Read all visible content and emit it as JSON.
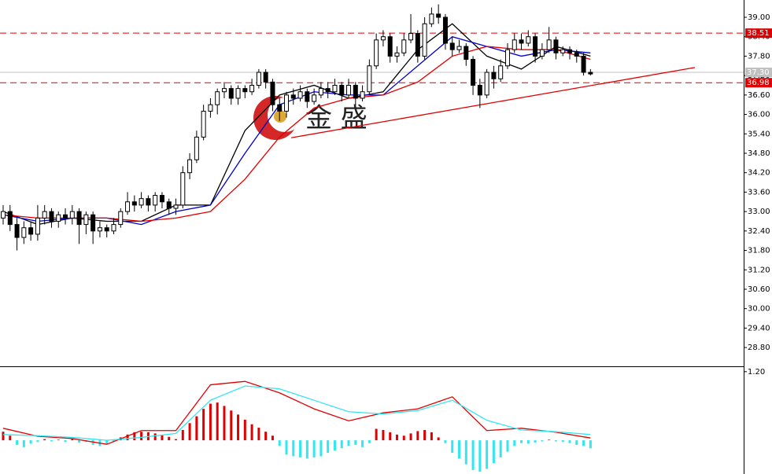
{
  "chart_data": [
    {
      "type": "candlestick",
      "xlim": [
        -0.456,
        107.17
      ],
      "ylim": [
        28.22,
        39.534
      ],
      "yticks": [
        {
          "value": 39,
          "label": "39.00"
        },
        {
          "value": 38.4,
          "label": "38.40"
        },
        {
          "value": 37.8,
          "label": "37.80"
        },
        {
          "value": 37.2,
          "label": "37.20"
        },
        {
          "value": 36.6,
          "label": "36.60"
        },
        {
          "value": 36,
          "label": "36.00"
        },
        {
          "value": 35.4,
          "label": "35.40"
        },
        {
          "value": 34.8,
          "label": "34.80"
        },
        {
          "value": 34.2,
          "label": "34.20"
        },
        {
          "value": 33.6,
          "label": "33.60"
        },
        {
          "value": 33,
          "label": "33.00"
        },
        {
          "value": 32.4,
          "label": "32.40"
        },
        {
          "value": 31.8,
          "label": "31.80"
        },
        {
          "value": 31.2,
          "label": "31.20"
        },
        {
          "value": 30.6,
          "label": "30.60"
        },
        {
          "value": 30,
          "label": "30.00"
        },
        {
          "value": 29.4,
          "label": "29.40"
        },
        {
          "value": 28.8,
          "label": "28.80"
        }
      ],
      "open": [
        32.8,
        33.0,
        32.6,
        32.2,
        32.5,
        32.3,
        32.8,
        33.0,
        32.7,
        32.9,
        32.8,
        33.0,
        32.6,
        32.9,
        32.4,
        32.5,
        32.4,
        32.6,
        33.0,
        33.3,
        33.2,
        33.4,
        33.2,
        33.5,
        33.3,
        33.1,
        33.2,
        34.2,
        34.6,
        35.3,
        36.1,
        36.3,
        36.7,
        36.8,
        36.5,
        36.8,
        36.7,
        36.9,
        37.3,
        37.0,
        36.3,
        36.1,
        36.6,
        36.5,
        36.7,
        36.4,
        36.6,
        36.8,
        36.7,
        36.9,
        36.6,
        36.9,
        36.5,
        36.7,
        37.5,
        38.3,
        38.4,
        37.8,
        37.9,
        38.3,
        38.5,
        37.8,
        38.8,
        39.1,
        39.0,
        38.2,
        38.0,
        38.1,
        37.7,
        36.9,
        36.6,
        37.3,
        37.1,
        37.5,
        38.0,
        38.3,
        38.2,
        38.4,
        37.8,
        38.0,
        38.3,
        37.9,
        38.0,
        37.9,
        37.8,
        37.3
      ],
      "high": [
        33.2,
        33.2,
        32.8,
        32.7,
        32.7,
        33.2,
        33.2,
        33.1,
        33.0,
        33.1,
        33.2,
        33.1,
        33.0,
        33.0,
        32.7,
        32.6,
        32.8,
        33.1,
        33.6,
        33.5,
        33.6,
        33.5,
        33.6,
        33.6,
        33.4,
        33.4,
        34.4,
        34.8,
        35.5,
        36.3,
        36.5,
        36.8,
        37.0,
        36.9,
        36.9,
        36.9,
        37.1,
        37.4,
        37.4,
        37.1,
        36.5,
        36.7,
        36.8,
        36.9,
        36.8,
        36.8,
        37.0,
        37.0,
        37.1,
        37.0,
        37.1,
        37.0,
        36.9,
        37.7,
        38.5,
        38.6,
        38.5,
        38.1,
        38.5,
        39.1,
        38.6,
        39.0,
        39.3,
        39.4,
        39.1,
        38.4,
        38.3,
        38.2,
        37.8,
        37.1,
        37.4,
        37.5,
        37.7,
        38.2,
        38.5,
        38.5,
        38.6,
        38.5,
        38.2,
        38.7,
        38.4,
        38.1,
        38.1,
        38.0,
        37.9,
        37.4
      ],
      "low": [
        32.6,
        32.4,
        31.8,
        32.0,
        32.1,
        32.1,
        32.6,
        32.5,
        32.5,
        32.6,
        32.6,
        32.0,
        32.3,
        32.0,
        32.2,
        32.2,
        32.3,
        32.5,
        32.9,
        33.0,
        33.1,
        33.0,
        33.0,
        33.1,
        32.9,
        32.9,
        33.1,
        34.0,
        34.5,
        35.2,
        35.9,
        36.0,
        36.5,
        36.3,
        36.3,
        36.5,
        36.6,
        36.8,
        36.8,
        36.1,
        35.8,
        35.9,
        36.3,
        36.4,
        36.2,
        36.3,
        36.5,
        36.5,
        36.6,
        36.4,
        36.5,
        36.3,
        36.4,
        36.6,
        37.4,
        38.1,
        37.6,
        37.6,
        37.8,
        38.2,
        37.6,
        37.7,
        38.7,
        38.8,
        38.0,
        37.8,
        37.9,
        37.5,
        36.6,
        36.2,
        36.5,
        36.8,
        37.0,
        37.4,
        37.9,
        38.0,
        38.1,
        37.6,
        37.7,
        37.9,
        37.7,
        37.8,
        37.7,
        37.6,
        37.2,
        37.2
      ],
      "close": [
        33.0,
        32.6,
        32.2,
        32.5,
        32.3,
        32.8,
        33.0,
        32.7,
        32.9,
        32.8,
        33.0,
        32.6,
        32.9,
        32.4,
        32.5,
        32.4,
        32.6,
        33.0,
        33.3,
        33.2,
        33.4,
        33.2,
        33.5,
        33.3,
        33.1,
        33.2,
        34.2,
        34.6,
        35.3,
        36.1,
        36.3,
        36.7,
        36.8,
        36.5,
        36.8,
        36.7,
        36.9,
        37.3,
        37.0,
        36.3,
        36.1,
        36.6,
        36.5,
        36.7,
        36.4,
        36.6,
        36.8,
        36.7,
        36.9,
        36.6,
        36.9,
        36.5,
        36.7,
        37.5,
        38.3,
        38.4,
        37.8,
        37.9,
        38.3,
        38.5,
        37.8,
        38.8,
        39.1,
        39.0,
        38.2,
        38.0,
        38.1,
        37.7,
        36.9,
        36.6,
        37.3,
        37.1,
        37.5,
        38.0,
        38.3,
        38.2,
        38.4,
        37.8,
        38.0,
        38.3,
        37.9,
        38.0,
        37.9,
        37.8,
        37.3,
        37.25
      ],
      "series": [
        {
          "color": "#000000",
          "x": [
            0,
            5,
            10,
            15,
            20,
            25,
            30,
            35,
            40,
            45,
            50,
            55,
            60,
            65,
            70,
            75,
            80,
            85
          ],
          "values": [
            33.0,
            32.6,
            32.8,
            32.7,
            32.7,
            33.2,
            33.2,
            35.5,
            36.6,
            36.9,
            36.5,
            36.7,
            38.0,
            38.8,
            37.8,
            37.4,
            38.1,
            37.8
          ]
        },
        {
          "color": "#0000cc",
          "x": [
            0,
            5,
            10,
            15,
            20,
            25,
            30,
            35,
            40,
            45,
            50,
            55,
            60,
            65,
            70,
            75,
            80,
            85
          ],
          "values": [
            32.9,
            32.7,
            32.8,
            32.8,
            32.6,
            33.0,
            33.2,
            34.8,
            36.3,
            36.7,
            36.6,
            36.6,
            37.5,
            38.4,
            38.1,
            37.8,
            38.0,
            37.9
          ]
        },
        {
          "color": "#e00000",
          "x": [
            0,
            5,
            10,
            15,
            20,
            25,
            30,
            35,
            40,
            45,
            50,
            55,
            60,
            65,
            70,
            75,
            80,
            85
          ],
          "values": [
            32.9,
            32.8,
            32.8,
            32.8,
            32.7,
            32.8,
            33.0,
            34.0,
            35.3,
            36.2,
            36.5,
            36.6,
            37.0,
            37.8,
            38.1,
            38.0,
            38.0,
            37.7
          ]
        }
      ],
      "levels": [
        {
          "value": 38.51,
          "label": "38.51",
          "color": "#e00000",
          "dashed": true
        },
        {
          "value": 36.98,
          "label": "36.98",
          "color": "#e00000",
          "dashed": true
        },
        {
          "value": 37.3,
          "label": "37.30",
          "color": "#c0c0c0",
          "dashed": false
        }
      ],
      "trendline": {
        "color": "#e00000",
        "x": [
          41.7,
          100.1
        ],
        "values": [
          35.28,
          37.45
        ]
      },
      "watermark": "金 盛"
    },
    {
      "type": "macd",
      "xlim": [
        -0.456,
        107.17
      ],
      "ylim": [
        -0.59,
        1.28
      ],
      "yticks": [
        {
          "value": 1.2,
          "label": "1.20"
        }
      ],
      "histogram": {
        "up_color": "#e00000",
        "down_color": "#33e6f0",
        "values": [
          0.15,
          0.08,
          -0.08,
          -0.12,
          -0.06,
          -0.03,
          0.02,
          -0.02,
          0.01,
          -0.03,
          0.02,
          -0.04,
          -0.03,
          -0.08,
          -0.1,
          -0.06,
          -0.02,
          0.05,
          0.1,
          0.14,
          0.15,
          0.14,
          0.12,
          0.09,
          0.06,
          0.02,
          0.18,
          0.3,
          0.42,
          0.55,
          0.64,
          0.66,
          0.6,
          0.52,
          0.45,
          0.36,
          0.28,
          0.22,
          0.15,
          0.08,
          -0.1,
          -0.25,
          -0.28,
          -0.3,
          -0.32,
          -0.3,
          -0.28,
          -0.22,
          -0.18,
          -0.14,
          -0.1,
          -0.08,
          -0.12,
          -0.05,
          0.2,
          0.18,
          0.14,
          0.1,
          0.08,
          0.12,
          0.16,
          0.18,
          0.14,
          0.05,
          -0.05,
          -0.22,
          -0.32,
          -0.42,
          -0.52,
          -0.55,
          -0.5,
          -0.4,
          -0.3,
          -0.2,
          -0.1,
          -0.05,
          -0.06,
          -0.04,
          -0.02,
          0.01,
          -0.02,
          -0.03,
          -0.05,
          -0.08,
          -0.1,
          -0.14
        ]
      },
      "series": [
        {
          "color": "#e00000",
          "x": [
            0,
            5,
            10,
            15,
            20,
            25,
            30,
            35,
            40,
            45,
            50,
            55,
            60,
            65,
            70,
            75,
            80,
            85
          ],
          "values": [
            0.21,
            0.07,
            0.03,
            -0.07,
            0.17,
            0.17,
            0.97,
            1.03,
            0.83,
            0.55,
            0.34,
            0.48,
            0.55,
            0.76,
            0.17,
            0.21,
            0.14,
            0.04
          ]
        },
        {
          "color": "#33e6f0",
          "x": [
            0,
            5,
            10,
            15,
            20,
            25,
            30,
            35,
            40,
            45,
            50,
            55,
            60,
            65,
            70,
            75,
            80,
            85
          ],
          "values": [
            0.1,
            0.08,
            0.05,
            0.0,
            0.05,
            0.12,
            0.7,
            0.95,
            0.9,
            0.7,
            0.5,
            0.46,
            0.52,
            0.7,
            0.35,
            0.18,
            0.15,
            0.1
          ]
        }
      ]
    }
  ]
}
